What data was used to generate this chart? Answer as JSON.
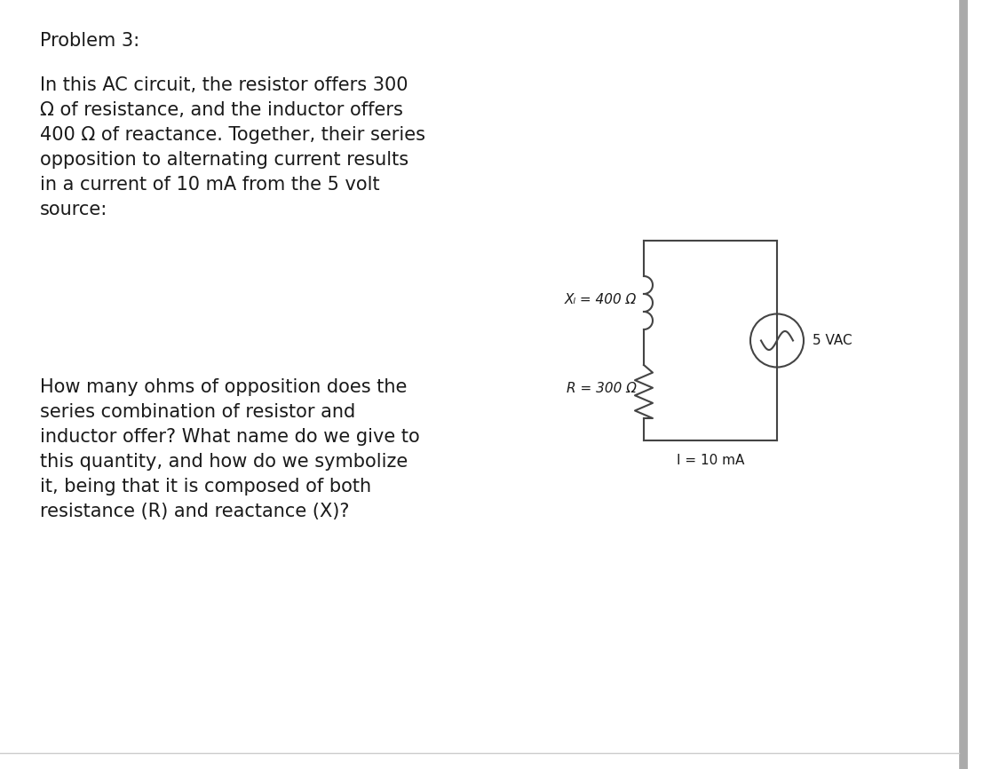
{
  "title": "Problem 3:",
  "paragraph1": "In this AC circuit, the resistor offers 300\nΩ of resistance, and the inductor offers\n400 Ω of reactance. Together, their series\nopposition to alternating current results\nin a current of 10 mA from the 5 volt\nsource:",
  "paragraph2": "How many ohms of opposition does the\nseries combination of resistor and\ninductor offer? What name do we give to\nthis quantity, and how do we symbolize\nit, being that it is composed of both\nresistance (R) and reactance (X)?",
  "label_XL": "Xₗ = 400 Ω",
  "label_R": "R = 300 Ω",
  "label_I": "I = 10 mA",
  "label_V": "5 VAC",
  "bg_color": "#ffffff",
  "text_color": "#1a1a1a",
  "circuit_color": "#444444",
  "sidebar_color": "#aaaaaa",
  "title_fontsize": 15,
  "body_fontsize": 15,
  "circuit_label_fontsize": 11,
  "circuit_linewidth": 1.5
}
